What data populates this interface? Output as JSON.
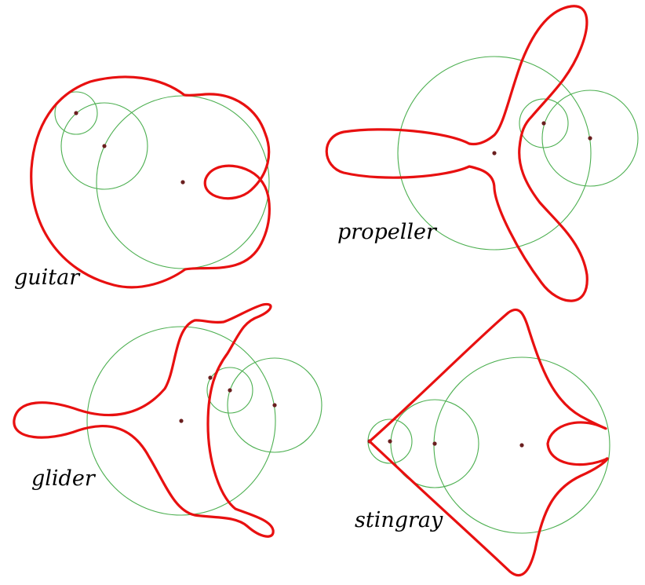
{
  "panels": [
    {
      "id": "guitar",
      "label": "guitar",
      "curve_color": "#e81010",
      "circle_color": "#4caf50",
      "dot_color": "#6a1f1f"
    },
    {
      "id": "propeller",
      "label": "propeller",
      "curve_color": "#e81010",
      "circle_color": "#4caf50",
      "dot_color": "#6a1f1f"
    },
    {
      "id": "glider",
      "label": "glider",
      "curve_color": "#e81010",
      "circle_color": "#4caf50",
      "dot_color": "#6a1f1f"
    },
    {
      "id": "stingray",
      "label": "stingray",
      "curve_color": "#e81010",
      "circle_color": "#4caf50",
      "dot_color": "#6a1f1f"
    }
  ]
}
